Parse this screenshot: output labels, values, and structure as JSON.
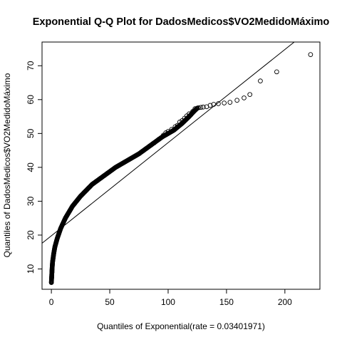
{
  "chart_data": {
    "type": "scatter",
    "title": "Exponential Q-Q Plot for DadosMedicos$VO2MedidoMáximo",
    "xlabel": "Quantiles of Exponential(rate = 0.03401971)",
    "ylabel": "Quantiles of DadosMedicos$VO2MedidoMáximo",
    "xlim": [
      -8,
      230
    ],
    "ylim": [
      4,
      77
    ],
    "xticks": [
      0,
      50,
      100,
      150,
      200
    ],
    "yticks": [
      10,
      20,
      30,
      40,
      50,
      60,
      70
    ],
    "xtick_labels": [
      "0",
      "50",
      "100",
      "150",
      "200"
    ],
    "ytick_labels": [
      "10",
      "20",
      "30",
      "40",
      "50",
      "60",
      "70"
    ],
    "reference_line": {
      "intercept": 19.8,
      "slope": 0.275
    },
    "colors": {
      "points": "#000000",
      "line": "#000000",
      "frame": "#000000"
    },
    "curve": [
      [
        0,
        6
      ],
      [
        0.3,
        8
      ],
      [
        0.6,
        10
      ],
      [
        1,
        12
      ],
      [
        2,
        14.5
      ],
      [
        3,
        16.5
      ],
      [
        5,
        19
      ],
      [
        8,
        22
      ],
      [
        12,
        25
      ],
      [
        18,
        28.5
      ],
      [
        25,
        31.5
      ],
      [
        35,
        35
      ],
      [
        45,
        37.5
      ],
      [
        55,
        40
      ],
      [
        65,
        42
      ],
      [
        75,
        44
      ],
      [
        85,
        46.5
      ],
      [
        95,
        49
      ],
      [
        105,
        51
      ],
      [
        112,
        53
      ],
      [
        118,
        55
      ],
      [
        122,
        56.5
      ],
      [
        125,
        57.5
      ]
    ],
    "points": [
      [
        0,
        6
      ],
      [
        0.1,
        6.5
      ],
      [
        0.3,
        7.5
      ],
      [
        0.4,
        8.2
      ],
      [
        0.5,
        9
      ],
      [
        88,
        47.2
      ],
      [
        92,
        48.3
      ],
      [
        96,
        49.5
      ],
      [
        98,
        50.2
      ],
      [
        100,
        50.6
      ],
      [
        103,
        51.2
      ],
      [
        106,
        52
      ],
      [
        108,
        52.4
      ],
      [
        110,
        53.4
      ],
      [
        112,
        53.8
      ],
      [
        114,
        54.5
      ],
      [
        116,
        55.2
      ],
      [
        118,
        55.8
      ],
      [
        121,
        56.5
      ],
      [
        123,
        57.3
      ],
      [
        126,
        57.6
      ],
      [
        128,
        57.7
      ],
      [
        130,
        57.8
      ],
      [
        133,
        57.9
      ],
      [
        136,
        58.3
      ],
      [
        139,
        58.6
      ],
      [
        143,
        58.8
      ],
      [
        148,
        59
      ],
      [
        153,
        59.2
      ],
      [
        159,
        59.8
      ],
      [
        165,
        60.5
      ],
      [
        170,
        61.5
      ],
      [
        179,
        65.5
      ],
      [
        193,
        68.2
      ],
      [
        222,
        73.3
      ]
    ]
  }
}
